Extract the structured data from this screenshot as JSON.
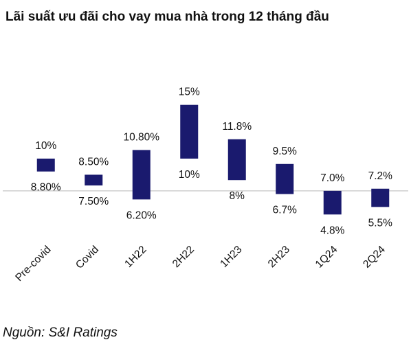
{
  "title": "Lãi suất ưu đãi cho vay mua nhà trong 12 tháng đầu",
  "source": "Nguồn: S&I Ratings",
  "colors": {
    "bar": "#1a1a6e",
    "connector": "#c8c8c8",
    "reference_line": "#cfcfcf"
  },
  "chart_data": {
    "type": "bar",
    "subtype": "floating-range",
    "title": "Lãi suất ưu đãi cho vay mua nhà trong 12 tháng đầu",
    "categories": [
      "Pre-covid",
      "Covid",
      "1H22",
      "2H22",
      "1H23",
      "2H23",
      "1Q24",
      "2Q24"
    ],
    "high": [
      10,
      8.5,
      10.8,
      15,
      11.8,
      9.5,
      7.0,
      7.2
    ],
    "low": [
      8.8,
      7.5,
      6.2,
      10,
      8,
      6.7,
      4.8,
      5.5
    ],
    "high_labels": [
      "10%",
      "8.50%",
      "10.80%",
      "15%",
      "11.8%",
      "9.5%",
      "7.0%",
      "7.2%"
    ],
    "low_labels": [
      "8.80%",
      "7.50%",
      "6.20%",
      "10%",
      "8%",
      "6.7%",
      "4.8%",
      "5.5%"
    ],
    "reference_line": 7.0,
    "ylim": [
      4.5,
      15.3
    ],
    "xlabel": "",
    "ylabel": "",
    "grid": false,
    "legend": "none",
    "x_tick_rotation": -45
  }
}
